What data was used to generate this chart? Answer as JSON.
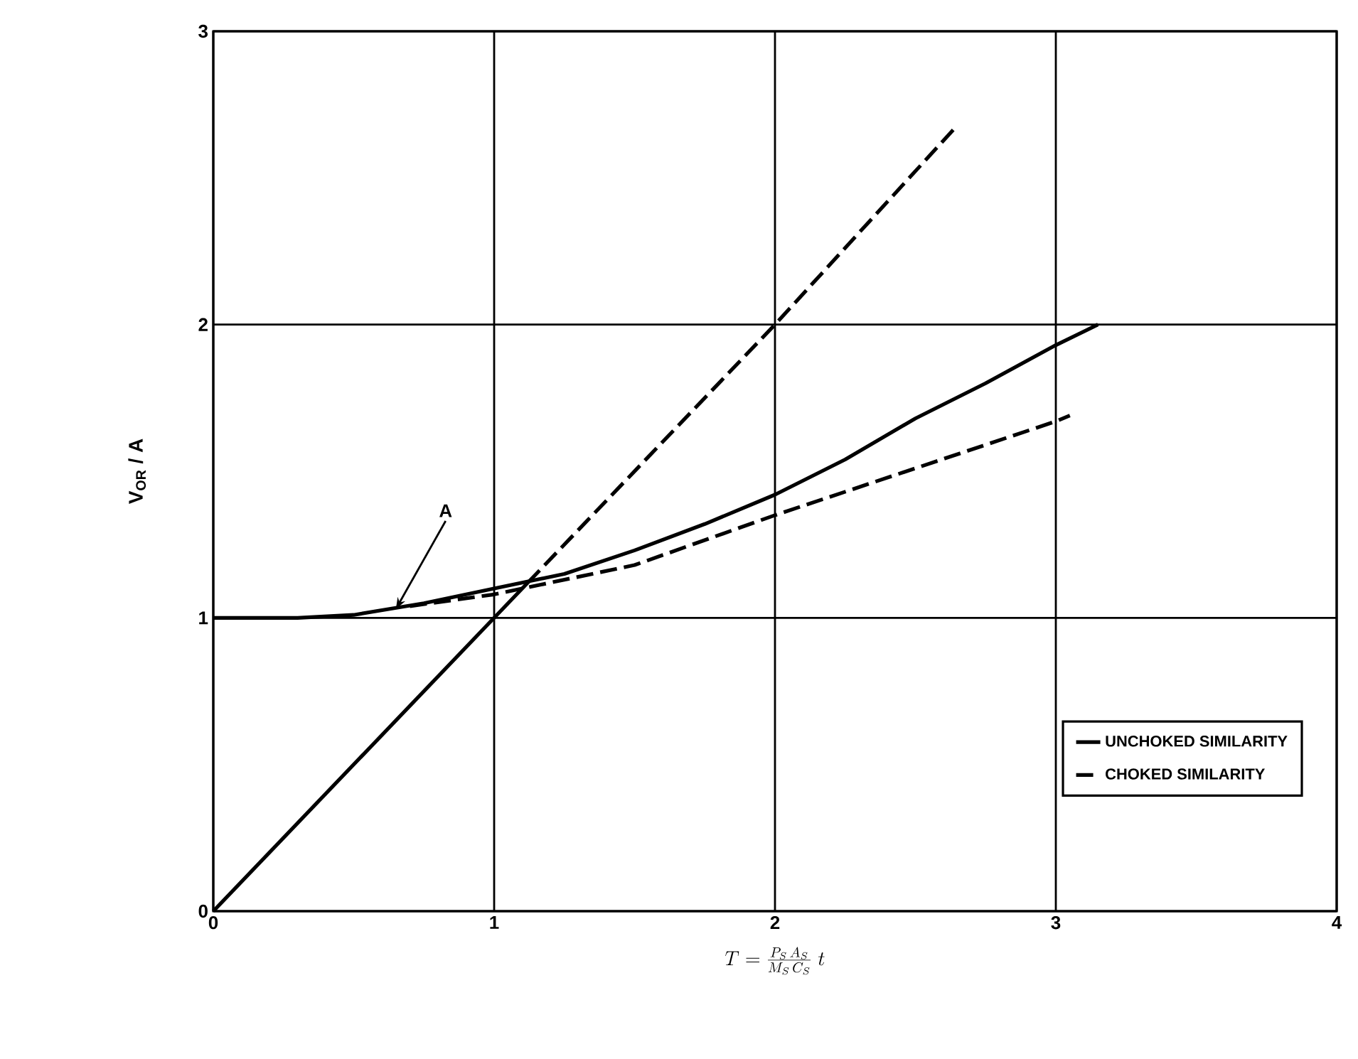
{
  "chart_data": {
    "type": "line",
    "xlabel": "T = \\frac{P_S\\,A_S}{M_S\\,C_S}\\;t",
    "ylabel": "V$_{OR}$ / A",
    "xlim": [
      0,
      4
    ],
    "ylim": [
      0,
      3
    ],
    "xticks": [
      0,
      1,
      2,
      3,
      4
    ],
    "yticks": [
      0,
      1,
      2,
      3
    ],
    "grid": true,
    "legend": "bottom right",
    "annotations": [
      {
        "text": "A",
        "x": 0.65,
        "y": 1.03
      }
    ],
    "series": [
      {
        "name": "UNCHOKED SIMILARITY",
        "color": "#000000",
        "line_style": "solid",
        "x": [
          0,
          0.3,
          0.5,
          0.75,
          1,
          1.25,
          1.5,
          1.75,
          2,
          2.25,
          2.5,
          2.75,
          3,
          3.15
        ],
        "values": [
          1,
          1.0,
          1.01,
          1.05,
          1.1,
          1.15,
          1.23,
          1.32,
          1.42,
          1.54,
          1.68,
          1.8,
          1.93,
          2.0
        ]
      },
      {
        "color": "#000000",
        "line_style": "solid",
        "x": [
          0,
          1,
          1.12
        ],
        "values": [
          0,
          1,
          1.12
        ]
      },
      {
        "name": "CHOKED SIMILARITY",
        "color": "#000000",
        "line_style": "dashed",
        "x": [
          0.7,
          1,
          1.5,
          2,
          2.5,
          3,
          3.05
        ],
        "values": [
          1.04,
          1.08,
          1.18,
          1.35,
          1.51,
          1.67,
          1.69
        ]
      },
      {
        "color": "#000000",
        "line_style": "dashed",
        "x": [
          1.12,
          2,
          2.65
        ],
        "values": [
          1.12,
          2,
          2.68
        ]
      }
    ]
  }
}
